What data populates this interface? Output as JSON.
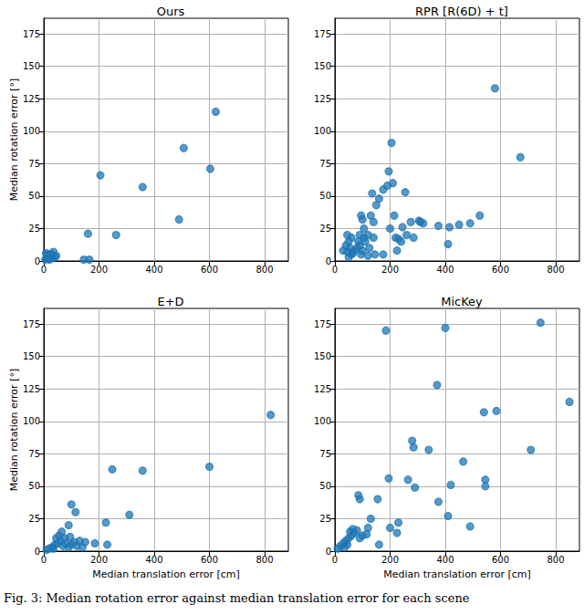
{
  "chart_data": [
    {
      "type": "scatter",
      "title": "Ours",
      "ylabel": "Median rotation error [°]",
      "xlim": [
        0,
        886
      ],
      "ylim": [
        0,
        187
      ],
      "xticks": [
        0,
        200,
        400,
        600,
        800
      ],
      "yticks": [
        0,
        25,
        50,
        75,
        100,
        125,
        150,
        175
      ],
      "grid": true,
      "marker": "circle",
      "color": "#1f77b4",
      "x": [
        5,
        10,
        15,
        20,
        25,
        30,
        8,
        12,
        18,
        40,
        35,
        22,
        28,
        45,
        15,
        145,
        165,
        160,
        205,
        262,
        358,
        490,
        507,
        603,
        623
      ],
      "values": [
        1,
        2,
        3,
        1,
        4,
        5,
        6,
        3,
        2,
        3,
        7,
        5,
        2,
        4,
        5,
        1,
        1,
        21,
        66,
        20,
        57,
        32,
        87,
        71,
        115
      ]
    },
    {
      "type": "scatter",
      "title": "RPR [R(6D) + t]",
      "xlim": [
        0,
        886
      ],
      "ylim": [
        0,
        187
      ],
      "xticks": [
        0,
        200,
        400,
        600,
        800
      ],
      "yticks": [
        0,
        25,
        50,
        75,
        100,
        125,
        150,
        175
      ],
      "grid": true,
      "marker": "circle",
      "color": "#1f77b4",
      "x": [
        30,
        40,
        45,
        50,
        55,
        60,
        50,
        45,
        65,
        70,
        60,
        80,
        85,
        90,
        95,
        100,
        105,
        110,
        90,
        100,
        95,
        120,
        125,
        130,
        135,
        140,
        145,
        140,
        150,
        160,
        175,
        190,
        195,
        205,
        210,
        215,
        220,
        225,
        230,
        240,
        245,
        255,
        260,
        275,
        285,
        305,
        310,
        320,
        375,
        410,
        415,
        450,
        490,
        525,
        580,
        672,
        175,
        120,
        200,
        105
      ],
      "values": [
        8,
        12,
        20,
        15,
        10,
        5,
        3,
        7,
        6,
        8,
        18,
        10,
        15,
        20,
        35,
        32,
        25,
        15,
        12,
        8,
        5,
        20,
        10,
        35,
        52,
        30,
        5,
        18,
        43,
        48,
        55,
        58,
        69,
        91,
        60,
        35,
        18,
        8,
        17,
        15,
        26,
        53,
        20,
        30,
        18,
        31,
        30,
        29,
        27,
        13,
        26,
        28,
        29,
        35,
        133,
        80,
        5,
        4,
        25,
        18
      ]
    },
    {
      "type": "scatter",
      "title": "E+D",
      "xlabel": "Median translation error [cm]",
      "ylabel": "Median rotation error [°]",
      "xlim": [
        0,
        886
      ],
      "ylim": [
        0,
        187
      ],
      "xticks": [
        0,
        200,
        400,
        600,
        800
      ],
      "yticks": [
        0,
        25,
        50,
        75,
        100,
        125,
        150,
        175
      ],
      "grid": true,
      "marker": "circle",
      "color": "#1f77b4",
      "x": [
        10,
        20,
        30,
        40,
        50,
        60,
        45,
        55,
        70,
        80,
        90,
        100,
        110,
        120,
        140,
        65,
        75,
        35,
        95,
        100,
        115,
        90,
        130,
        150,
        185,
        225,
        230,
        248,
        310,
        358,
        600,
        822
      ],
      "values": [
        1,
        2,
        3,
        5,
        6,
        8,
        10,
        12,
        4,
        6,
        3,
        5,
        7,
        4,
        3,
        15,
        10,
        2,
        11,
        36,
        30,
        20,
        8,
        7,
        6,
        22,
        5,
        63,
        28,
        62,
        65,
        105
      ]
    },
    {
      "type": "scatter",
      "title": "MicKey",
      "xlabel": "Median translation error [cm]",
      "xlim": [
        0,
        886
      ],
      "ylim": [
        0,
        187
      ],
      "xticks": [
        0,
        200,
        400,
        600,
        800
      ],
      "yticks": [
        0,
        25,
        50,
        75,
        100,
        125,
        150,
        175
      ],
      "grid": true,
      "marker": "circle",
      "color": "#1f77b4",
      "x": [
        10,
        20,
        30,
        40,
        50,
        55,
        60,
        45,
        35,
        65,
        70,
        80,
        90,
        100,
        85,
        90,
        115,
        120,
        155,
        160,
        130,
        185,
        195,
        200,
        225,
        230,
        265,
        280,
        285,
        290,
        340,
        370,
        375,
        400,
        410,
        420,
        465,
        490,
        540,
        545,
        545,
        585,
        710,
        745,
        850
      ],
      "values": [
        2,
        4,
        6,
        8,
        10,
        15,
        12,
        5,
        3,
        17,
        14,
        16,
        10,
        12,
        43,
        40,
        13,
        18,
        40,
        5,
        25,
        170,
        56,
        18,
        14,
        22,
        55,
        85,
        80,
        49,
        78,
        128,
        38,
        172,
        27,
        51,
        69,
        19,
        107,
        55,
        50,
        108,
        78,
        176,
        115
      ]
    }
  ],
  "caption": "Fig. 3: Median rotation error against median translation error for each scene"
}
